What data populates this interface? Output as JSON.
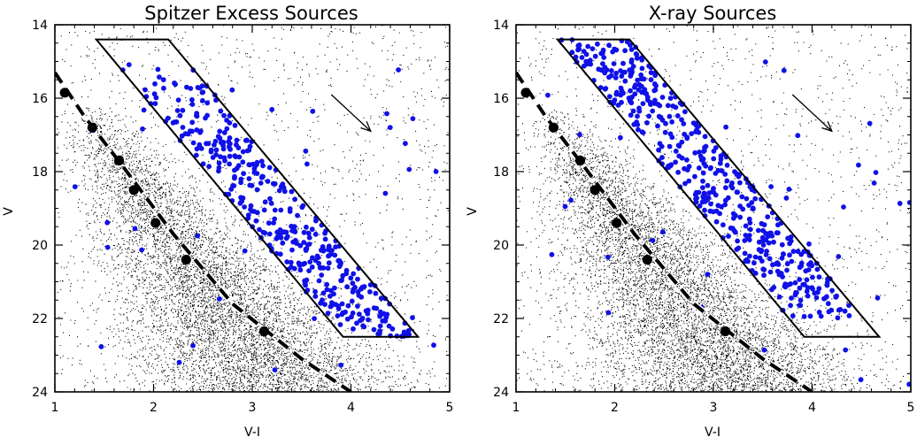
{
  "figure": {
    "colors": {
      "background": "#ffffff",
      "axes": "#000000",
      "highlight": "#1010e8",
      "field": "#000000"
    }
  },
  "chart_data": [
    {
      "type": "scatter",
      "title": "Spitzer Excess Sources",
      "xlabel": "V-I",
      "ylabel": "V",
      "xlim": [
        1,
        5
      ],
      "ylim": [
        24,
        14
      ],
      "y_inverted": true,
      "x_ticks": [
        1,
        2,
        3,
        4,
        5
      ],
      "x_tick_labels": [
        "1",
        "2",
        "3",
        "4",
        "5"
      ],
      "y_ticks": [
        14,
        16,
        18,
        20,
        22,
        24
      ],
      "y_tick_labels": [
        "14",
        "16",
        "18",
        "20",
        "22",
        "24"
      ],
      "selection_box": [
        [
          1.42,
          14.4
        ],
        [
          2.15,
          14.4
        ],
        [
          4.68,
          22.5
        ],
        [
          3.92,
          22.5
        ],
        [
          1.42,
          14.4
        ]
      ],
      "reddening_vector": {
        "from": [
          3.8,
          15.9
        ],
        "to": [
          4.2,
          16.9
        ]
      },
      "isochrone": {
        "style": "dashed",
        "points": [
          [
            1.0,
            15.3
          ],
          [
            1.3,
            16.5
          ],
          [
            1.7,
            17.9
          ],
          [
            2.2,
            19.7
          ],
          [
            2.8,
            21.6
          ],
          [
            3.5,
            23.1
          ],
          [
            4.0,
            24.0
          ]
        ],
        "markers": [
          [
            1.1,
            15.85
          ],
          [
            1.38,
            16.8
          ],
          [
            1.65,
            17.7
          ],
          [
            1.8,
            18.5
          ],
          [
            2.02,
            19.4
          ],
          [
            2.33,
            20.4
          ],
          [
            3.12,
            22.35
          ]
        ]
      },
      "field_stars": {
        "count_approx": 9000,
        "color": "#000000",
        "distribution": "dense lower-left envelope, V-I 1.0-5.0, V 14-24"
      },
      "highlighted_sources": {
        "count_approx": 420,
        "color": "#1010e8",
        "label": "Spitzer excess",
        "distribution": "concentrated inside selection box, V 15-23, some below box near V 22-24"
      }
    },
    {
      "type": "scatter",
      "title": "X-ray Sources",
      "xlabel": "V-I",
      "ylabel": "V",
      "xlim": [
        1,
        5
      ],
      "ylim": [
        24,
        14
      ],
      "y_inverted": true,
      "x_ticks": [
        1,
        2,
        3,
        4,
        5
      ],
      "x_tick_labels": [
        "1",
        "2",
        "3",
        "4",
        "5"
      ],
      "y_ticks": [
        14,
        16,
        18,
        20,
        22,
        24
      ],
      "y_tick_labels": [
        "14",
        "16",
        "18",
        "20",
        "22",
        "24"
      ],
      "selection_box": [
        [
          1.42,
          14.4
        ],
        [
          2.15,
          14.4
        ],
        [
          4.68,
          22.5
        ],
        [
          3.92,
          22.5
        ],
        [
          1.42,
          14.4
        ]
      ],
      "reddening_vector": {
        "from": [
          3.8,
          15.9
        ],
        "to": [
          4.2,
          16.9
        ]
      },
      "isochrone": {
        "style": "dashed",
        "points": [
          [
            1.0,
            15.3
          ],
          [
            1.3,
            16.5
          ],
          [
            1.7,
            17.9
          ],
          [
            2.2,
            19.7
          ],
          [
            2.8,
            21.6
          ],
          [
            3.5,
            23.1
          ],
          [
            4.0,
            24.0
          ]
        ],
        "markers": [
          [
            1.1,
            15.85
          ],
          [
            1.38,
            16.8
          ],
          [
            1.65,
            17.7
          ],
          [
            1.8,
            18.5
          ],
          [
            2.02,
            19.4
          ],
          [
            2.33,
            20.4
          ],
          [
            3.12,
            22.35
          ]
        ]
      },
      "field_stars": {
        "count_approx": 9000,
        "color": "#000000",
        "distribution": "dense lower-left envelope, V-I 1.0-5.0, V 14-24"
      },
      "highlighted_sources": {
        "count_approx": 500,
        "color": "#1010e8",
        "label": "X-ray",
        "distribution": "concentrated inside selection box, V 14-22, more at bright end"
      }
    }
  ]
}
